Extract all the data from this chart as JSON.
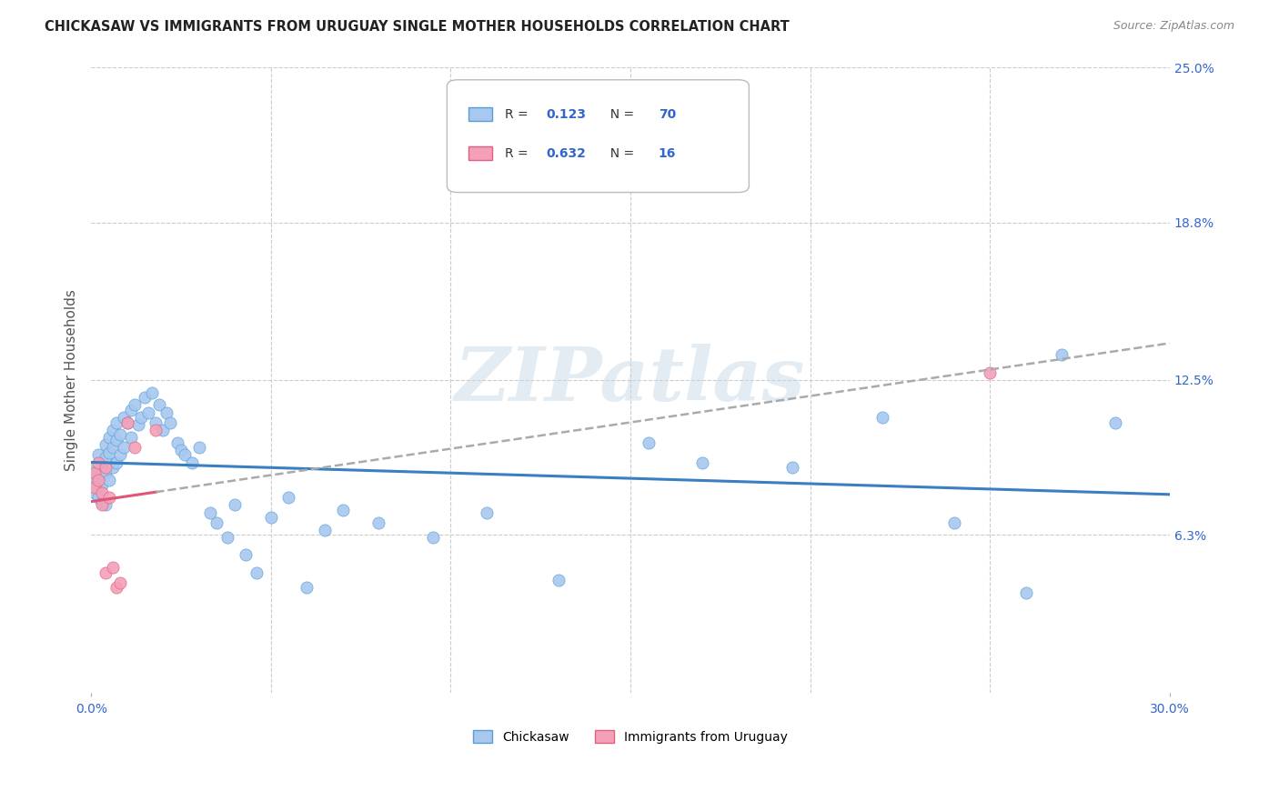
{
  "title": "CHICKASAW VS IMMIGRANTS FROM URUGUAY SINGLE MOTHER HOUSEHOLDS CORRELATION CHART",
  "source": "Source: ZipAtlas.com",
  "ylabel": "Single Mother Households",
  "xlim": [
    0.0,
    0.3
  ],
  "ylim": [
    0.0,
    0.25
  ],
  "yticks": [
    0.063,
    0.125,
    0.188,
    0.25
  ],
  "ytick_labels": [
    "6.3%",
    "12.5%",
    "18.8%",
    "25.0%"
  ],
  "R_chickasaw": 0.123,
  "N_chickasaw": 70,
  "R_uruguay": 0.632,
  "N_uruguay": 16,
  "chickasaw_color": "#a8c8f0",
  "chickasaw_edge": "#5a9fd4",
  "uruguay_color": "#f4a0b8",
  "uruguay_edge": "#e06080",
  "trendline_chickasaw_color": "#3a7fc1",
  "trendline_uruguay_color": "#e05575",
  "background_color": "#ffffff",
  "grid_color": "#cccccc",
  "watermark": "ZIPatlas",
  "chickasaw_points_x": [
    0.001,
    0.001,
    0.001,
    0.002,
    0.002,
    0.002,
    0.002,
    0.003,
    0.003,
    0.003,
    0.003,
    0.004,
    0.004,
    0.004,
    0.004,
    0.005,
    0.005,
    0.005,
    0.006,
    0.006,
    0.006,
    0.007,
    0.007,
    0.007,
    0.008,
    0.008,
    0.009,
    0.009,
    0.01,
    0.011,
    0.011,
    0.012,
    0.013,
    0.014,
    0.015,
    0.016,
    0.017,
    0.018,
    0.019,
    0.02,
    0.021,
    0.022,
    0.024,
    0.025,
    0.026,
    0.028,
    0.03,
    0.033,
    0.035,
    0.038,
    0.04,
    0.043,
    0.046,
    0.05,
    0.055,
    0.06,
    0.065,
    0.07,
    0.08,
    0.095,
    0.11,
    0.13,
    0.155,
    0.17,
    0.195,
    0.22,
    0.24,
    0.26,
    0.27,
    0.285
  ],
  "chickasaw_points_y": [
    0.09,
    0.085,
    0.08,
    0.095,
    0.088,
    0.082,
    0.078,
    0.092,
    0.087,
    0.083,
    0.076,
    0.099,
    0.094,
    0.088,
    0.075,
    0.102,
    0.096,
    0.085,
    0.105,
    0.098,
    0.09,
    0.108,
    0.101,
    0.092,
    0.103,
    0.095,
    0.11,
    0.098,
    0.108,
    0.113,
    0.102,
    0.115,
    0.107,
    0.11,
    0.118,
    0.112,
    0.12,
    0.108,
    0.115,
    0.105,
    0.112,
    0.108,
    0.1,
    0.097,
    0.095,
    0.092,
    0.098,
    0.072,
    0.068,
    0.062,
    0.075,
    0.055,
    0.048,
    0.07,
    0.078,
    0.042,
    0.065,
    0.073,
    0.068,
    0.062,
    0.072,
    0.045,
    0.1,
    0.092,
    0.09,
    0.11,
    0.068,
    0.04,
    0.135,
    0.108
  ],
  "uruguay_points_x": [
    0.001,
    0.001,
    0.002,
    0.002,
    0.003,
    0.003,
    0.004,
    0.004,
    0.005,
    0.006,
    0.007,
    0.008,
    0.01,
    0.012,
    0.018,
    0.25
  ],
  "uruguay_points_y": [
    0.088,
    0.082,
    0.092,
    0.085,
    0.08,
    0.075,
    0.09,
    0.048,
    0.078,
    0.05,
    0.042,
    0.044,
    0.108,
    0.098,
    0.105,
    0.128
  ]
}
